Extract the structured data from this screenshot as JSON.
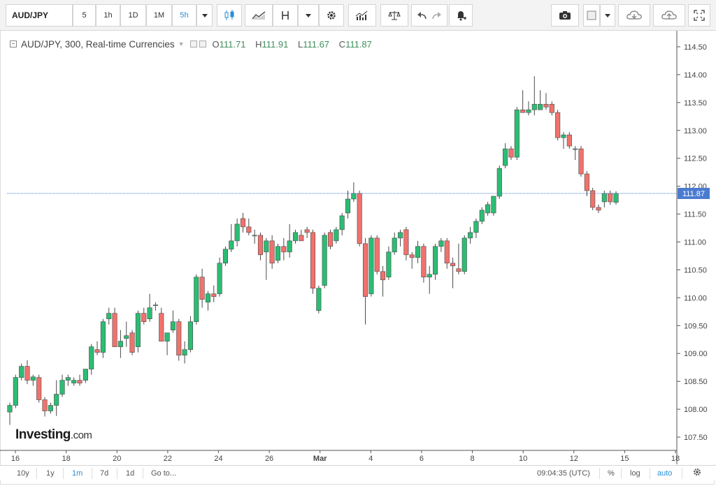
{
  "toolbar": {
    "symbol": "AUD/JPY",
    "intervals": [
      "5",
      "1h",
      "1D",
      "1M",
      "5h"
    ],
    "active_interval": "5h"
  },
  "legend": {
    "title": "AUD/JPY, 300, Real-time Currencies",
    "open_label": "O",
    "open": "111.71",
    "high_label": "H",
    "high": "111.91",
    "low_label": "L",
    "low": "111.67",
    "close_label": "C",
    "close": "111.87"
  },
  "logo": {
    "main": "Investing",
    "suffix": ".com"
  },
  "price_tag": "111.87",
  "bottom": {
    "ranges": [
      "10y",
      "1y",
      "1m",
      "7d",
      "1d"
    ],
    "active_range": "1m",
    "goto": "Go to...",
    "time": "09:04:35 (UTC)",
    "percent": "%",
    "log": "log",
    "auto": "auto"
  },
  "colors": {
    "up": "#26a69a",
    "up_fill": "#2bbd73",
    "down": "#ef5350",
    "down_fill": "#f0726c",
    "wick": "#4a4a4a",
    "price_line": "#4a7bd0",
    "accent": "#2a8dd4"
  },
  "chart_data": {
    "type": "candlestick",
    "title": "AUD/JPY, 300, Real-time Currencies",
    "ylim": [
      107.3,
      114.75
    ],
    "y_ticks": [
      "107.50",
      "108.00",
      "108.50",
      "109.00",
      "109.50",
      "110.00",
      "110.50",
      "111.00",
      "111.50",
      "112.00",
      "112.50",
      "113.00",
      "113.50",
      "114.00",
      "114.50"
    ],
    "x_tick_labels": [
      "16",
      "18",
      "20",
      "22",
      "24",
      "26",
      "Mar",
      "4",
      "6",
      "8",
      "10",
      "12",
      "15",
      "18"
    ],
    "last_price": 111.87,
    "candles": [
      {
        "o": 107.95,
        "h": 108.12,
        "l": 107.72,
        "c": 108.07
      },
      {
        "o": 108.07,
        "h": 108.62,
        "l": 108.02,
        "c": 108.57
      },
      {
        "o": 108.57,
        "h": 108.82,
        "l": 108.52,
        "c": 108.77
      },
      {
        "o": 108.77,
        "h": 108.88,
        "l": 108.45,
        "c": 108.52
      },
      {
        "o": 108.52,
        "h": 108.62,
        "l": 108.42,
        "c": 108.58
      },
      {
        "o": 108.57,
        "h": 108.62,
        "l": 108.12,
        "c": 108.17
      },
      {
        "o": 108.17,
        "h": 108.22,
        "l": 107.87,
        "c": 107.97
      },
      {
        "o": 107.97,
        "h": 108.12,
        "l": 107.92,
        "c": 108.07
      },
      {
        "o": 108.07,
        "h": 108.52,
        "l": 107.88,
        "c": 108.27
      },
      {
        "o": 108.27,
        "h": 108.62,
        "l": 108.22,
        "c": 108.52
      },
      {
        "o": 108.52,
        "h": 108.62,
        "l": 108.42,
        "c": 108.57
      },
      {
        "o": 108.47,
        "h": 108.57,
        "l": 108.42,
        "c": 108.52
      },
      {
        "o": 108.52,
        "h": 108.62,
        "l": 108.42,
        "c": 108.47
      },
      {
        "o": 108.52,
        "h": 108.72,
        "l": 108.47,
        "c": 108.72
      },
      {
        "o": 108.72,
        "h": 109.17,
        "l": 108.62,
        "c": 109.12
      },
      {
        "o": 109.07,
        "h": 109.22,
        "l": 108.97,
        "c": 109.02
      },
      {
        "o": 109.02,
        "h": 109.62,
        "l": 108.92,
        "c": 109.57
      },
      {
        "o": 109.62,
        "h": 109.82,
        "l": 109.52,
        "c": 109.72
      },
      {
        "o": 109.72,
        "h": 109.82,
        "l": 109.12,
        "c": 109.12
      },
      {
        "o": 109.12,
        "h": 109.42,
        "l": 108.92,
        "c": 109.22
      },
      {
        "o": 109.27,
        "h": 109.57,
        "l": 109.12,
        "c": 109.32
      },
      {
        "o": 109.37,
        "h": 109.42,
        "l": 108.97,
        "c": 109.02
      },
      {
        "o": 109.12,
        "h": 109.77,
        "l": 109.02,
        "c": 109.72
      },
      {
        "o": 109.72,
        "h": 109.82,
        "l": 109.52,
        "c": 109.57
      },
      {
        "o": 109.62,
        "h": 110.07,
        "l": 109.57,
        "c": 109.82
      },
      {
        "o": 109.87,
        "h": 109.92,
        "l": 109.77,
        "c": 109.87
      },
      {
        "o": 109.72,
        "h": 109.82,
        "l": 109.22,
        "c": 109.22
      },
      {
        "o": 109.22,
        "h": 109.37,
        "l": 108.97,
        "c": 109.37
      },
      {
        "o": 109.42,
        "h": 109.77,
        "l": 109.37,
        "c": 109.57
      },
      {
        "o": 109.57,
        "h": 109.62,
        "l": 108.87,
        "c": 108.97
      },
      {
        "o": 108.97,
        "h": 109.22,
        "l": 108.82,
        "c": 109.07
      },
      {
        "o": 109.07,
        "h": 109.67,
        "l": 109.02,
        "c": 109.57
      },
      {
        "o": 109.57,
        "h": 110.42,
        "l": 109.52,
        "c": 110.37
      },
      {
        "o": 110.37,
        "h": 110.52,
        "l": 109.82,
        "c": 109.97
      },
      {
        "o": 109.92,
        "h": 110.12,
        "l": 109.77,
        "c": 110.07
      },
      {
        "o": 110.07,
        "h": 110.22,
        "l": 109.92,
        "c": 110.02
      },
      {
        "o": 110.07,
        "h": 110.72,
        "l": 110.02,
        "c": 110.62
      },
      {
        "o": 110.62,
        "h": 110.92,
        "l": 110.57,
        "c": 110.87
      },
      {
        "o": 110.87,
        "h": 111.32,
        "l": 110.82,
        "c": 111.02
      },
      {
        "o": 111.02,
        "h": 111.42,
        "l": 110.92,
        "c": 111.32
      },
      {
        "o": 111.42,
        "h": 111.52,
        "l": 111.17,
        "c": 111.27
      },
      {
        "o": 111.27,
        "h": 111.42,
        "l": 111.12,
        "c": 111.17
      },
      {
        "o": 111.12,
        "h": 111.22,
        "l": 110.97,
        "c": 111.12
      },
      {
        "o": 111.12,
        "h": 111.17,
        "l": 110.67,
        "c": 110.77
      },
      {
        "o": 110.82,
        "h": 111.07,
        "l": 110.32,
        "c": 111.02
      },
      {
        "o": 111.02,
        "h": 111.12,
        "l": 110.52,
        "c": 110.62
      },
      {
        "o": 110.67,
        "h": 110.97,
        "l": 110.62,
        "c": 110.92
      },
      {
        "o": 110.92,
        "h": 111.07,
        "l": 110.67,
        "c": 110.82
      },
      {
        "o": 110.82,
        "h": 111.32,
        "l": 110.72,
        "c": 111.02
      },
      {
        "o": 111.02,
        "h": 111.22,
        "l": 110.97,
        "c": 111.17
      },
      {
        "o": 111.12,
        "h": 111.22,
        "l": 111.02,
        "c": 111.02
      },
      {
        "o": 111.22,
        "h": 111.27,
        "l": 111.07,
        "c": 111.17
      },
      {
        "o": 111.17,
        "h": 111.22,
        "l": 110.07,
        "c": 110.17
      },
      {
        "o": 109.77,
        "h": 110.22,
        "l": 109.72,
        "c": 110.17
      },
      {
        "o": 110.22,
        "h": 111.17,
        "l": 110.17,
        "c": 111.12
      },
      {
        "o": 111.17,
        "h": 111.22,
        "l": 110.87,
        "c": 110.92
      },
      {
        "o": 111.02,
        "h": 111.27,
        "l": 110.97,
        "c": 111.22
      },
      {
        "o": 111.22,
        "h": 111.52,
        "l": 111.12,
        "c": 111.47
      },
      {
        "o": 111.52,
        "h": 111.92,
        "l": 111.42,
        "c": 111.77
      },
      {
        "o": 111.77,
        "h": 112.07,
        "l": 111.72,
        "c": 111.87
      },
      {
        "o": 111.87,
        "h": 111.92,
        "l": 110.92,
        "c": 110.97
      },
      {
        "o": 110.97,
        "h": 111.07,
        "l": 109.52,
        "c": 110.02
      },
      {
        "o": 110.07,
        "h": 111.12,
        "l": 110.02,
        "c": 111.07
      },
      {
        "o": 111.07,
        "h": 111.12,
        "l": 110.42,
        "c": 110.47
      },
      {
        "o": 110.47,
        "h": 110.57,
        "l": 110.02,
        "c": 110.32
      },
      {
        "o": 110.37,
        "h": 110.92,
        "l": 110.32,
        "c": 110.82
      },
      {
        "o": 110.82,
        "h": 111.17,
        "l": 110.77,
        "c": 111.07
      },
      {
        "o": 111.07,
        "h": 111.22,
        "l": 110.92,
        "c": 111.17
      },
      {
        "o": 111.22,
        "h": 111.27,
        "l": 110.67,
        "c": 110.77
      },
      {
        "o": 110.77,
        "h": 110.82,
        "l": 110.52,
        "c": 110.72
      },
      {
        "o": 110.72,
        "h": 111.02,
        "l": 110.62,
        "c": 110.92
      },
      {
        "o": 110.92,
        "h": 110.97,
        "l": 110.27,
        "c": 110.37
      },
      {
        "o": 110.37,
        "h": 110.57,
        "l": 110.07,
        "c": 110.42
      },
      {
        "o": 110.42,
        "h": 110.97,
        "l": 110.32,
        "c": 110.92
      },
      {
        "o": 110.92,
        "h": 111.07,
        "l": 110.82,
        "c": 111.02
      },
      {
        "o": 111.02,
        "h": 111.07,
        "l": 110.52,
        "c": 110.62
      },
      {
        "o": 110.62,
        "h": 110.72,
        "l": 110.17,
        "c": 110.57
      },
      {
        "o": 110.52,
        "h": 110.97,
        "l": 110.42,
        "c": 110.47
      },
      {
        "o": 110.47,
        "h": 111.12,
        "l": 110.42,
        "c": 111.07
      },
      {
        "o": 111.07,
        "h": 111.27,
        "l": 110.97,
        "c": 111.17
      },
      {
        "o": 111.17,
        "h": 111.42,
        "l": 111.07,
        "c": 111.37
      },
      {
        "o": 111.37,
        "h": 111.62,
        "l": 111.32,
        "c": 111.57
      },
      {
        "o": 111.52,
        "h": 111.72,
        "l": 111.47,
        "c": 111.67
      },
      {
        "o": 111.52,
        "h": 111.82,
        "l": 111.47,
        "c": 111.82
      },
      {
        "o": 111.82,
        "h": 112.37,
        "l": 111.77,
        "c": 112.32
      },
      {
        "o": 112.37,
        "h": 112.77,
        "l": 112.32,
        "c": 112.67
      },
      {
        "o": 112.67,
        "h": 112.72,
        "l": 112.47,
        "c": 112.52
      },
      {
        "o": 112.52,
        "h": 113.42,
        "l": 112.47,
        "c": 113.37
      },
      {
        "o": 113.37,
        "h": 113.72,
        "l": 113.32,
        "c": 113.32
      },
      {
        "o": 113.32,
        "h": 113.52,
        "l": 113.27,
        "c": 113.37
      },
      {
        "o": 113.37,
        "h": 113.97,
        "l": 113.27,
        "c": 113.47
      },
      {
        "o": 113.37,
        "h": 113.72,
        "l": 113.37,
        "c": 113.47
      },
      {
        "o": 113.47,
        "h": 113.67,
        "l": 113.37,
        "c": 113.42
      },
      {
        "o": 113.47,
        "h": 113.52,
        "l": 113.27,
        "c": 113.32
      },
      {
        "o": 113.32,
        "h": 113.37,
        "l": 112.82,
        "c": 112.87
      },
      {
        "o": 112.87,
        "h": 112.97,
        "l": 112.67,
        "c": 112.92
      },
      {
        "o": 112.92,
        "h": 112.97,
        "l": 112.67,
        "c": 112.72
      },
      {
        "o": 112.67,
        "h": 112.72,
        "l": 112.47,
        "c": 112.67
      },
      {
        "o": 112.67,
        "h": 112.72,
        "l": 112.17,
        "c": 112.22
      },
      {
        "o": 112.22,
        "h": 112.27,
        "l": 111.82,
        "c": 111.92
      },
      {
        "o": 111.92,
        "h": 111.97,
        "l": 111.57,
        "c": 111.62
      },
      {
        "o": 111.62,
        "h": 111.67,
        "l": 111.52,
        "c": 111.57
      },
      {
        "o": 111.72,
        "h": 111.92,
        "l": 111.62,
        "c": 111.87
      },
      {
        "o": 111.87,
        "h": 111.92,
        "l": 111.67,
        "c": 111.72
      },
      {
        "o": 111.71,
        "h": 111.91,
        "l": 111.67,
        "c": 111.87
      }
    ]
  }
}
